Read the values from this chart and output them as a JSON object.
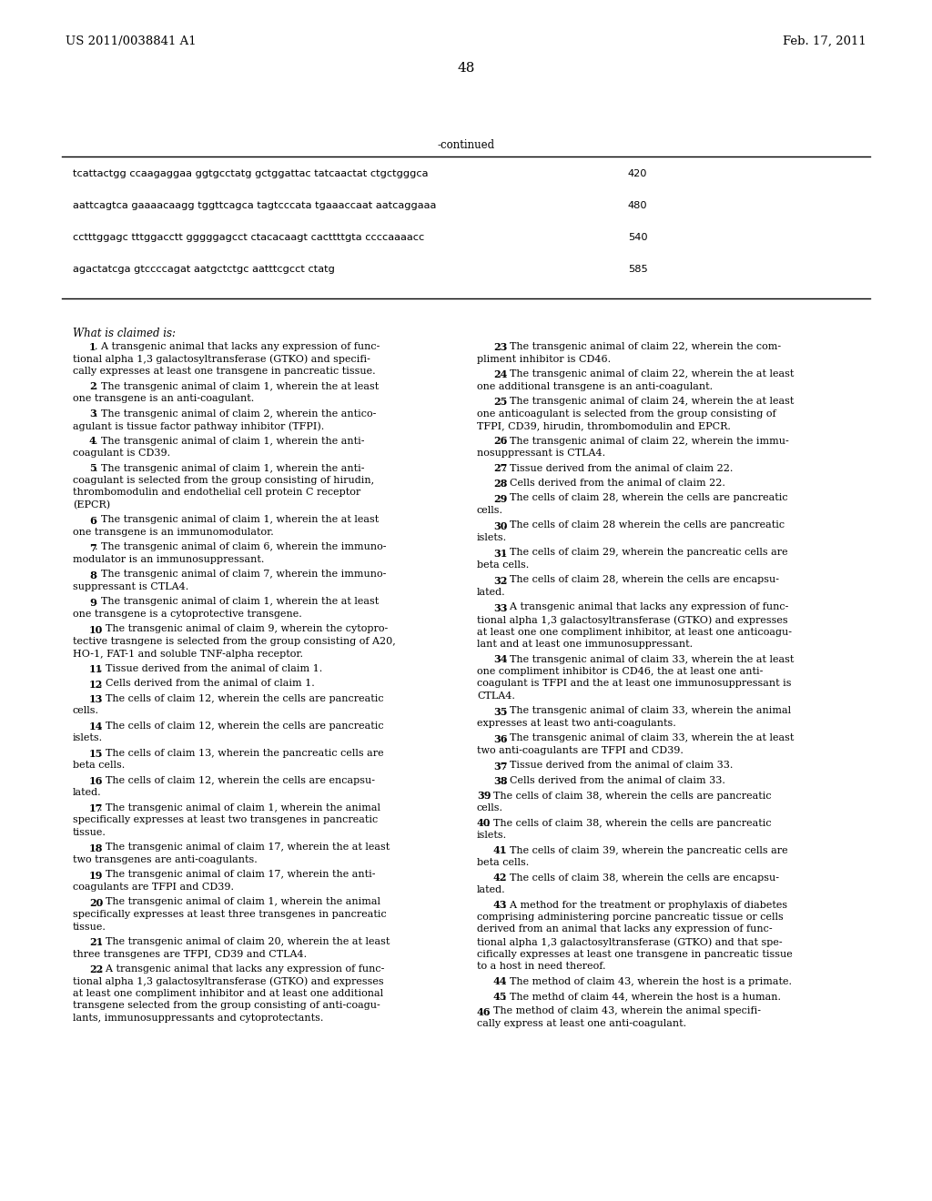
{
  "background_color": "#ffffff",
  "header_left": "US 2011/0038841 A1",
  "header_right": "Feb. 17, 2011",
  "page_number": "48",
  "continued_label": "-continued",
  "seq_rows": [
    {
      "seq": "tcattactgg ccaagaggaa ggtgcctatg gctggattac tatcaactat ctgctgggca",
      "num": "420"
    },
    {
      "seq": "aattcagtca gaaaacaagg tggttcagca tagtcccata tgaaaccaat aatcaggaaa",
      "num": "480"
    },
    {
      "seq": "cctttggagc tttggacctt gggggagcct ctacacaagt cacttttgta ccccaaaacc",
      "num": "540"
    },
    {
      "seq": "agactatcga gtccccagat aatgctctgc aatttcgcct ctatg",
      "num": "585"
    }
  ],
  "claims_intro": "What is claimed is:",
  "left_claims": [
    {
      "num": "1",
      "body": ". A transgenic animal that lacks any expression of func-\ntional alpha 1,3 galactosyltransferase (GTKO) and specifi-\ncally expresses at least one transgene in pancreatic tissue.",
      "indent": true
    },
    {
      "num": "2",
      "body": ". The transgenic animal of claim 1, wherein the at least\none transgene is an anti-coagulant.",
      "indent": true
    },
    {
      "num": "3",
      "body": ". The transgenic animal of claim 2, wherein the antico-\nagulant is tissue factor pathway inhibitor (TFPI).",
      "indent": true
    },
    {
      "num": "4",
      "body": ". The transgenic animal of claim 1, wherein the anti-\ncoagulant is CD39.",
      "indent": true
    },
    {
      "num": "5",
      "body": ". The transgenic animal of claim 1, wherein the anti-\ncoagulant is selected from the group consisting of hirudin,\nthrombomodulin and endothelial cell protein C receptor\n(EPCR)",
      "indent": true
    },
    {
      "num": "6",
      "body": ". The transgenic animal of claim 1, wherein the at least\none transgene is an immunomodulator.",
      "indent": true
    },
    {
      "num": "7",
      "body": ". The transgenic animal of claim 6, wherein the immuno-\nmodulator is an immunosuppressant.",
      "indent": true
    },
    {
      "num": "8",
      "body": ". The transgenic animal of claim 7, wherein the immuno-\nsuppressant is CTLA4.",
      "indent": true
    },
    {
      "num": "9",
      "body": ". The transgenic animal of claim 1, wherein the at least\none transgene is a cytoprotective transgene.",
      "indent": true
    },
    {
      "num": "10",
      "body": ". The transgenic animal of claim 9, wherein the cytopro-\ntective trasngene is selected from the group consisting of A20,\nHO-1, FAT-1 and soluble TNF-alpha receptor.",
      "indent": true
    },
    {
      "num": "11",
      "body": ". Tissue derived from the animal of claim 1.",
      "indent": true
    },
    {
      "num": "12",
      "body": ". Cells derived from the animal of claim 1.",
      "indent": true
    },
    {
      "num": "13",
      "body": ". The cells of claim 12, wherein the cells are pancreatic\ncells.",
      "indent": true
    },
    {
      "num": "14",
      "body": ". The cells of claim 12, wherein the cells are pancreatic\nislets.",
      "indent": true
    },
    {
      "num": "15",
      "body": ". The cells of claim 13, wherein the pancreatic cells are\nbeta cells.",
      "indent": true
    },
    {
      "num": "16",
      "body": ". The cells of claim 12, wherein the cells are encapsu-\nlated.",
      "indent": true
    },
    {
      "num": "17",
      "body": ". The transgenic animal of claim 1, wherein the animal\nspecifically expresses at least two transgenes in pancreatic\ntissue.",
      "indent": true
    },
    {
      "num": "18",
      "body": ". The transgenic animal of claim 17, wherein the at least\ntwo transgenes are anti-coagulants.",
      "indent": true
    },
    {
      "num": "19",
      "body": ". The transgenic animal of claim 17, wherein the anti-\ncoagulants are TFPI and CD39.",
      "indent": true
    },
    {
      "num": "20",
      "body": ". The transgenic animal of claim 1, wherein the animal\nspecifically expresses at least three transgenes in pancreatic\ntissue.",
      "indent": true
    },
    {
      "num": "21",
      "body": ". The transgenic animal of claim 20, wherein the at least\nthree transgenes are TFPI, CD39 and CTLA4.",
      "indent": true
    },
    {
      "num": "22",
      "body": ". A transgenic animal that lacks any expression of func-\ntional alpha 1,3 galactosyltransferase (GTKO) and expresses\nat least one compliment inhibitor and at least one additional\ntransgene selected from the group consisting of anti-coagu-\nlants, immunosuppressants and cytoprotectants.",
      "indent": true
    }
  ],
  "right_claims": [
    {
      "num": "23",
      "body": ". The transgenic animal of claim 22, wherein the com-\npliment inhibitor is CD46.",
      "indent": true
    },
    {
      "num": "24",
      "body": ". The transgenic animal of claim 22, wherein the at least\none additional transgene is an anti-coagulant.",
      "indent": true
    },
    {
      "num": "25",
      "body": ". The transgenic animal of claim 24, wherein the at least\none anticoagulant is selected from the group consisting of\nTFPI, CD39, hirudin, thrombomodulin and EPCR.",
      "indent": true
    },
    {
      "num": "26",
      "body": ". The transgenic animal of claim 22, wherein the immu-\nnosuppressant is CTLA4.",
      "indent": true
    },
    {
      "num": "27",
      "body": ". Tissue derived from the animal of claim 22.",
      "indent": true
    },
    {
      "num": "28",
      "body": ". Cells derived from the animal of claim 22.",
      "indent": true
    },
    {
      "num": "29",
      "body": ". The cells of claim 28, wherein the cells are pancreatic\ncells.",
      "indent": true
    },
    {
      "num": "30",
      "body": ". The cells of claim 28 wherein the cells are pancreatic\nislets.",
      "indent": true
    },
    {
      "num": "31",
      "body": ". The cells of claim 29, wherein the pancreatic cells are\nbeta cells.",
      "indent": true
    },
    {
      "num": "32",
      "body": ". The cells of claim 28, wherein the cells are encapsu-\nlated.",
      "indent": true
    },
    {
      "num": "33",
      "body": ". A transgenic animal that lacks any expression of func-\ntional alpha 1,3 galactosyltransferase (GTKO) and expresses\nat least one one compliment inhibitor, at least one anticoagu-\nlant and at least one immunosuppressant.",
      "indent": true
    },
    {
      "num": "34",
      "body": ". The transgenic animal of claim 33, wherein the at least\none compliment inhibitor is CD46, the at least one anti-\ncoagulant is TFPI and the at least one immunosuppressant is\nCTLA4.",
      "indent": true
    },
    {
      "num": "35",
      "body": ". The transgenic animal of claim 33, wherein the animal\nexpresses at least two anti-coagulants.",
      "indent": true
    },
    {
      "num": "36",
      "body": ". The transgenic animal of claim 33, wherein the at least\ntwo anti-coagulants are TFPI and CD39.",
      "indent": true
    },
    {
      "num": "37",
      "body": ". Tissue derived from the animal of claim 33.",
      "indent": true
    },
    {
      "num": "38",
      "body": ". Cells derived from the animal of claim 33.",
      "indent": true
    },
    {
      "num": "39",
      "body": ". The cells of claim 38, wherein the cells are pancreatic\ncells.",
      "indent": false
    },
    {
      "num": "40",
      "body": ". The cells of claim 38, wherein the cells are pancreatic\nislets.",
      "indent": false
    },
    {
      "num": "41",
      "body": ". The cells of claim 39, wherein the pancreatic cells are\nbeta cells.",
      "indent": true
    },
    {
      "num": "42",
      "body": ". The cells of claim 38, wherein the cells are encapsu-\nlated.",
      "indent": true
    },
    {
      "num": "43",
      "body": ". A method for the treatment or prophylaxis of diabetes\ncomprising administering porcine pancreatic tissue or cells\nderived from an animal that lacks any expression of func-\ntional alpha 1,3 galactosyltransferase (GTKO) and that spe-\ncifically expresses at least one transgene in pancreatic tissue\nto a host in need thereof.",
      "indent": true
    },
    {
      "num": "44",
      "body": ". The method of claim 43, wherein the host is a primate.",
      "indent": true
    },
    {
      "num": "45",
      "body": ". The methd of claim 44, wherein the host is a human.",
      "indent": true
    },
    {
      "num": "46",
      "body": ". The method of claim 43, wherein the animal specifi-\ncally express at least one anti-coagulant.",
      "indent": false
    }
  ]
}
